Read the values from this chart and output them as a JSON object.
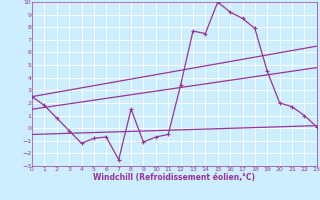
{
  "background_color": "#cceeff",
  "grid_color": "#ffffff",
  "line_color": "#993399",
  "x_label": "Windchill (Refroidissement éolien,°C)",
  "xlim": [
    0,
    23
  ],
  "ylim": [
    -3,
    10
  ],
  "yticks": [
    -3,
    -2,
    -1,
    0,
    1,
    2,
    3,
    4,
    5,
    6,
    7,
    8,
    9,
    10
  ],
  "xticks": [
    0,
    1,
    2,
    3,
    4,
    5,
    6,
    7,
    8,
    9,
    10,
    11,
    12,
    13,
    14,
    15,
    16,
    17,
    18,
    19,
    20,
    21,
    22,
    23
  ],
  "series1_x": [
    0,
    1,
    2,
    3,
    4,
    5,
    6,
    7,
    8,
    9,
    10,
    11,
    12,
    13,
    14,
    15,
    16,
    17,
    18,
    19,
    20,
    21,
    22,
    23
  ],
  "series1_y": [
    2.5,
    1.8,
    0.8,
    -0.2,
    -1.2,
    -0.8,
    -0.7,
    -2.5,
    1.5,
    -1.1,
    -0.7,
    -0.5,
    3.4,
    7.7,
    7.5,
    10.0,
    9.2,
    8.7,
    7.9,
    4.5,
    2.0,
    1.7,
    1.0,
    0.1
  ],
  "series2_x": [
    0,
    23
  ],
  "series2_y": [
    2.5,
    6.5
  ],
  "series3_x": [
    0,
    23
  ],
  "series3_y": [
    1.5,
    4.8
  ],
  "series4_x": [
    0,
    23
  ],
  "series4_y": [
    -0.5,
    0.2
  ],
  "marker": "+",
  "markersize": 3,
  "linewidth": 0.9
}
